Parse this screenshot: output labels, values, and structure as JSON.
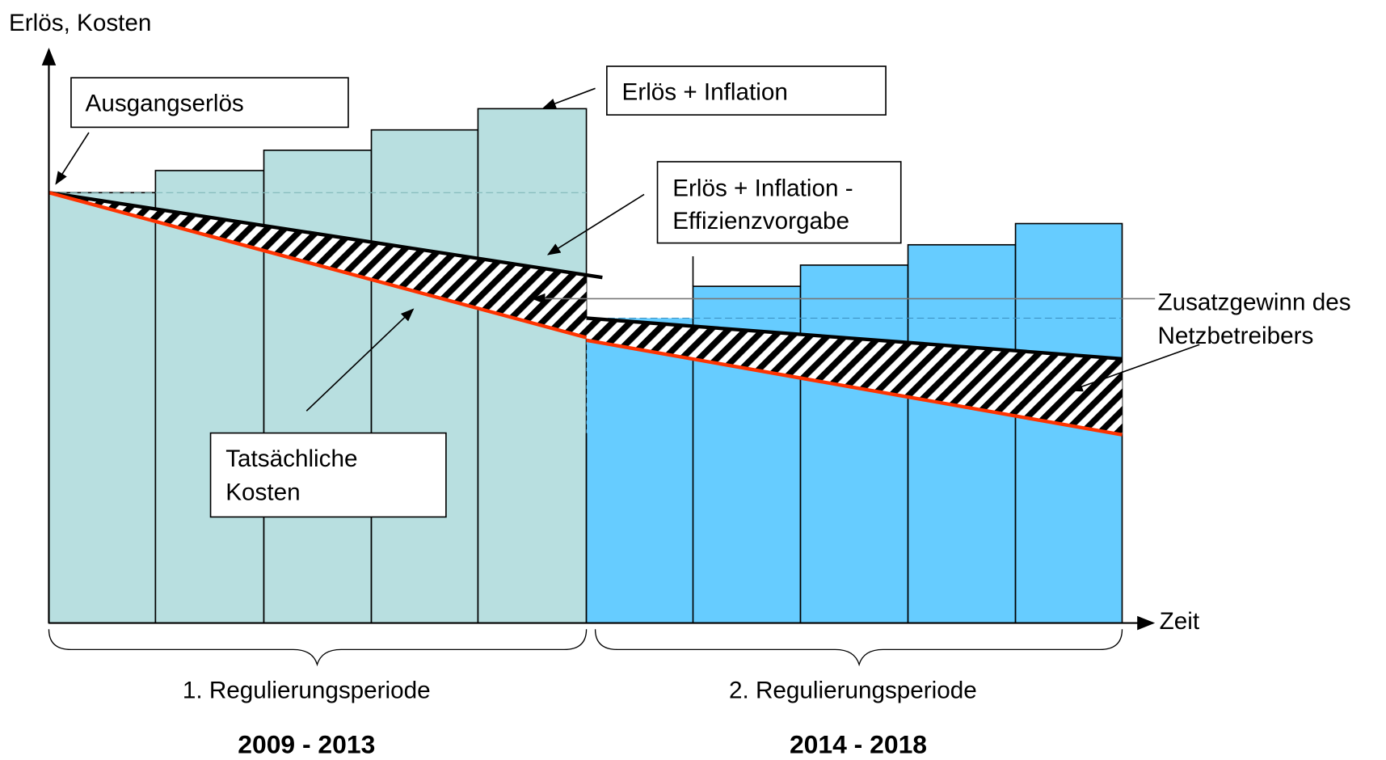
{
  "axis": {
    "y_label": "Erlös, Kosten",
    "x_label": "Zeit"
  },
  "annotations": {
    "start": [
      "Ausgangserlös"
    ],
    "inflation": [
      "Erlös + Inflation"
    ],
    "efficiency": [
      "Erlös + Inflation -",
      "Effizienzvorgabe"
    ],
    "costs": [
      "Tatsächliche",
      "Kosten"
    ],
    "gain": [
      "Zusatzgewinn des",
      "Netzbetreibers"
    ]
  },
  "periods": [
    {
      "label": "1. Regulierungsperiode",
      "years": "2009 - 2013"
    },
    {
      "label": "2. Regulierungsperiode",
      "years": "2014 - 2018"
    }
  ]
}
